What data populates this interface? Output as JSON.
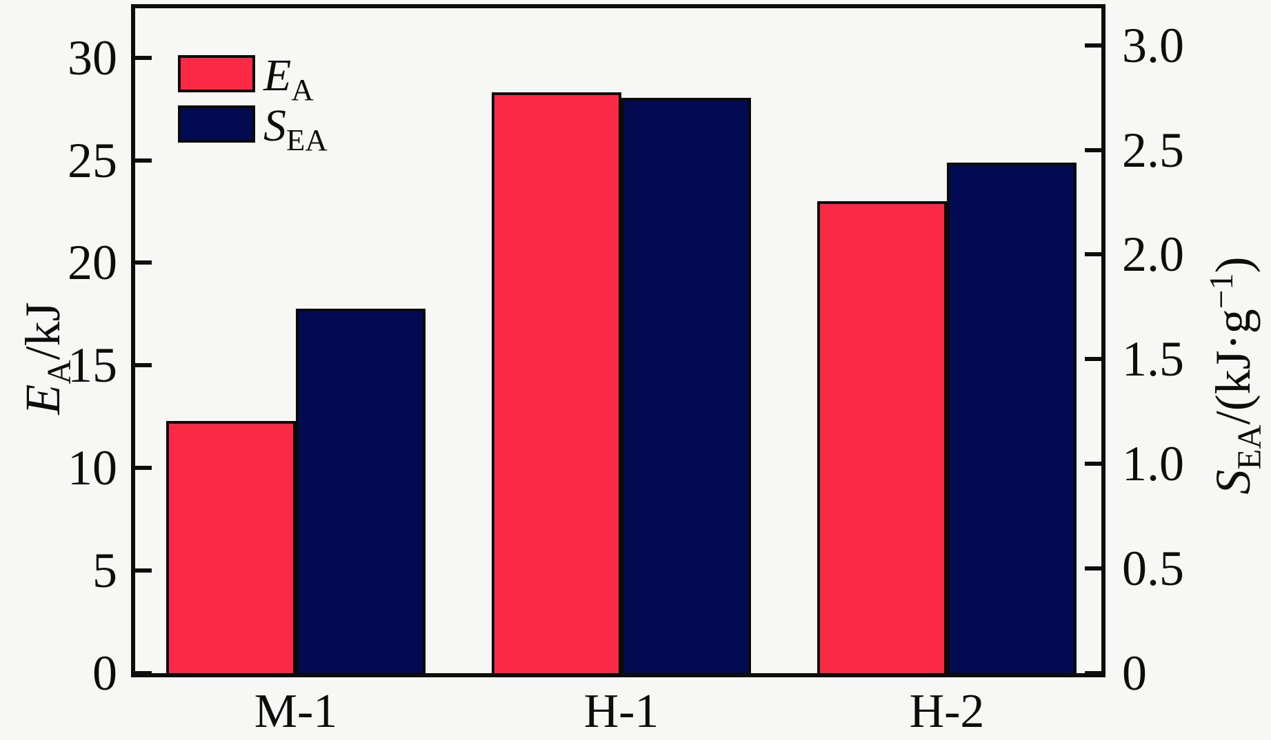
{
  "figure": {
    "background": "#f7f7f6",
    "frame_color": "#0d0d0d",
    "text_color": "#0d0d0d"
  },
  "legend": {
    "items": [
      {
        "symbol": "E",
        "subscript": "A",
        "color": "#fb2946"
      },
      {
        "symbol": "S",
        "subscript": "EA",
        "color": "#020b52"
      }
    ]
  },
  "axes": {
    "left": {
      "title": {
        "symbol": "E",
        "subscript": "A",
        "rest": "/kJ"
      },
      "ticks": [
        {
          "v": 0,
          "label": "0"
        },
        {
          "v": 5,
          "label": "5"
        },
        {
          "v": 10,
          "label": "10"
        },
        {
          "v": 15,
          "label": "15"
        },
        {
          "v": 20,
          "label": "20"
        },
        {
          "v": 25,
          "label": "25"
        },
        {
          "v": 30,
          "label": "30"
        }
      ]
    },
    "right": {
      "title": {
        "symbol": "S",
        "subscript": "EA",
        "mid": "/(kJ·g",
        "sup": "−1",
        "end": ")"
      },
      "ticks": [
        {
          "v": 0,
          "label": "0"
        },
        {
          "v": 0.5,
          "label": "0.5"
        },
        {
          "v": 1.0,
          "label": "1.0"
        },
        {
          "v": 1.5,
          "label": "1.5"
        },
        {
          "v": 2.0,
          "label": "2.0"
        },
        {
          "v": 2.5,
          "label": "2.5"
        },
        {
          "v": 3.0,
          "label": "3.0"
        }
      ]
    }
  },
  "chart_data": {
    "type": "bar",
    "categories": [
      "M-1",
      "H-1",
      "H-2"
    ],
    "series": [
      {
        "name": "E_A",
        "axis": "left",
        "color": "#fb2946",
        "values": [
          12.3,
          28.3,
          23.0
        ]
      },
      {
        "name": "S_EA",
        "axis": "right",
        "color": "#020b52",
        "values": [
          1.74,
          2.75,
          2.44
        ]
      }
    ],
    "title": "",
    "xlabel": "",
    "ylabel_left": "E_A/kJ",
    "ylabel_right": "S_EA/(kJ·g−1)",
    "ylim_left": [
      0,
      32.4
    ],
    "ylim_right": [
      0,
      3.18
    ],
    "yticks_left": [
      0,
      5,
      10,
      15,
      20,
      25,
      30
    ],
    "yticks_right": [
      0,
      0.5,
      1.0,
      1.5,
      2.0,
      2.5,
      3.0
    ],
    "grid": false,
    "legend_position": "upper-left-inside",
    "bar_edge_color": "#0a0a0a"
  }
}
